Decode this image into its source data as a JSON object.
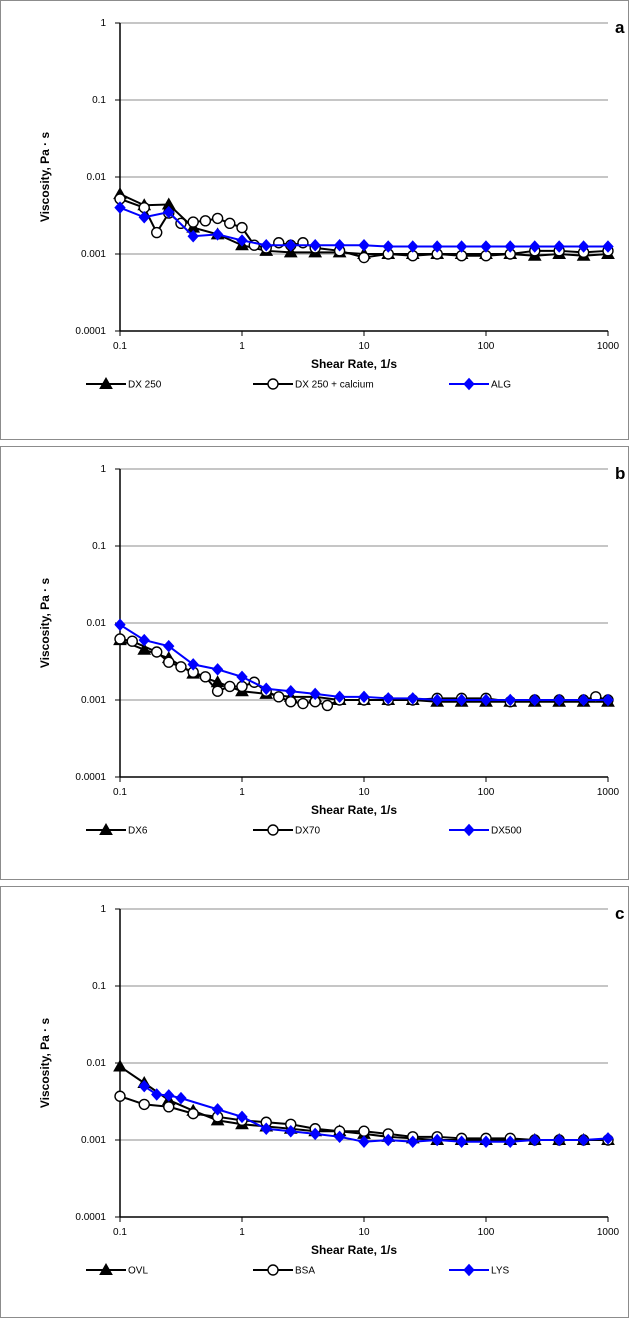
{
  "chart_data": [
    {
      "type": "line",
      "panel_label": "a",
      "xlabel": "Shear Rate, 1/s",
      "ylabel": "Viscosity, Pa · s",
      "xscale": "log",
      "yscale": "log",
      "xlim": [
        0.1,
        1000
      ],
      "ylim": [
        0.0001,
        1
      ],
      "x_tick_labels": [
        "0.1",
        "1",
        "10",
        "100",
        "1000"
      ],
      "y_tick_labels": [
        "0.0001",
        "0.001",
        "0.01",
        "0.1",
        "1"
      ],
      "grid": "horizontal",
      "legend_position": "bottom",
      "series": [
        {
          "name": "DX 250",
          "marker": "triangle",
          "color": "#000000",
          "x": [
            0.1,
            0.158,
            0.251,
            0.398,
            0.631,
            1.0,
            1.58,
            2.51,
            3.98,
            6.31,
            10,
            15.8,
            25.1,
            39.8,
            63.1,
            100,
            158,
            251,
            398,
            631,
            1000
          ],
          "y": [
            0.006,
            0.0043,
            0.0044,
            0.0022,
            0.0018,
            0.0013,
            0.0011,
            0.00105,
            0.00105,
            0.00105,
            0.001,
            0.001,
            0.001,
            0.001,
            0.001,
            0.001,
            0.001,
            0.00095,
            0.001,
            0.00095,
            0.001
          ]
        },
        {
          "name": "DX 250 + calcium",
          "marker": "circle-open",
          "color": "#000000",
          "x": [
            0.1,
            0.158,
            0.2,
            0.251,
            0.316,
            0.398,
            0.501,
            0.631,
            0.794,
            1.0,
            1.26,
            1.58,
            2.0,
            2.51,
            3.16,
            3.98,
            6.31,
            10,
            15.8,
            25.1,
            39.8,
            63.1,
            100,
            158,
            251,
            398,
            631,
            1000
          ],
          "y": [
            0.0052,
            0.004,
            0.0019,
            0.0034,
            0.0025,
            0.0026,
            0.0027,
            0.0029,
            0.0025,
            0.0022,
            0.0013,
            0.0012,
            0.0014,
            0.0013,
            0.0014,
            0.0012,
            0.0011,
            0.0009,
            0.001,
            0.00095,
            0.001,
            0.00095,
            0.00095,
            0.001,
            0.0011,
            0.0011,
            0.00105,
            0.0011
          ]
        },
        {
          "name": "ALG",
          "marker": "diamond",
          "color": "#0000ff",
          "x": [
            0.1,
            0.158,
            0.251,
            0.398,
            0.631,
            1.0,
            1.58,
            2.51,
            3.98,
            6.31,
            10,
            15.8,
            25.1,
            39.8,
            63.1,
            100,
            158,
            251,
            398,
            631,
            1000
          ],
          "y": [
            0.004,
            0.003,
            0.0035,
            0.0017,
            0.0018,
            0.0015,
            0.0013,
            0.0013,
            0.0013,
            0.0013,
            0.0013,
            0.00125,
            0.00125,
            0.00125,
            0.00125,
            0.00125,
            0.00125,
            0.00125,
            0.00125,
            0.00125,
            0.00125
          ]
        }
      ]
    },
    {
      "type": "line",
      "panel_label": "b",
      "xlabel": "Shear Rate, 1/s",
      "ylabel": "Viscosity, Pa · s",
      "xscale": "log",
      "yscale": "log",
      "xlim": [
        0.1,
        1000
      ],
      "ylim": [
        0.0001,
        1
      ],
      "x_tick_labels": [
        "0.1",
        "1",
        "10",
        "100",
        "1000"
      ],
      "y_tick_labels": [
        "0.0001",
        "0.001",
        "0.01",
        "0.1",
        "1"
      ],
      "grid": "horizontal",
      "legend_position": "bottom",
      "series": [
        {
          "name": "DX6",
          "marker": "triangle",
          "color": "#000000",
          "x": [
            0.1,
            0.158,
            0.251,
            0.398,
            0.631,
            1.0,
            1.58,
            2.51,
            3.98,
            6.31,
            10,
            15.8,
            25.1,
            39.8,
            63.1,
            100,
            158,
            251,
            398,
            631,
            1000
          ],
          "y": [
            0.006,
            0.0045,
            0.0035,
            0.0022,
            0.0017,
            0.0013,
            0.0012,
            0.0011,
            0.0011,
            0.001,
            0.001,
            0.001,
            0.001,
            0.00095,
            0.00095,
            0.00095,
            0.00095,
            0.00095,
            0.00095,
            0.00095,
            0.00095
          ]
        },
        {
          "name": "DX70",
          "marker": "circle-open",
          "color": "#000000",
          "x": [
            0.1,
            0.126,
            0.2,
            0.251,
            0.316,
            0.398,
            0.501,
            0.631,
            0.794,
            1.0,
            1.26,
            1.58,
            2.0,
            2.51,
            3.16,
            3.98,
            5.01,
            6.31,
            10,
            15.8,
            25.1,
            39.8,
            63.1,
            100,
            158,
            251,
            398,
            631,
            794,
            1000
          ],
          "y": [
            0.0062,
            0.0058,
            0.0042,
            0.0031,
            0.0027,
            0.0023,
            0.002,
            0.0013,
            0.0015,
            0.0015,
            0.0017,
            0.0013,
            0.0011,
            0.00095,
            0.0009,
            0.00095,
            0.00085,
            0.001,
            0.001,
            0.001,
            0.001,
            0.00105,
            0.00105,
            0.00105,
            0.00095,
            0.001,
            0.001,
            0.001,
            0.0011,
            0.001
          ]
        },
        {
          "name": "DX500",
          "marker": "diamond",
          "color": "#0000ff",
          "x": [
            0.1,
            0.158,
            0.251,
            0.398,
            0.631,
            1.0,
            1.58,
            2.51,
            3.98,
            6.31,
            10,
            15.8,
            25.1,
            39.8,
            63.1,
            100,
            158,
            251,
            398,
            631,
            1000
          ],
          "y": [
            0.0095,
            0.006,
            0.005,
            0.0029,
            0.0025,
            0.002,
            0.0014,
            0.0013,
            0.0012,
            0.0011,
            0.0011,
            0.00105,
            0.00105,
            0.001,
            0.001,
            0.001,
            0.001,
            0.001,
            0.001,
            0.001,
            0.001
          ]
        }
      ]
    },
    {
      "type": "line",
      "panel_label": "c",
      "xlabel": "Shear Rate, 1/s",
      "ylabel": "Viscosity, Pa · s",
      "xscale": "log",
      "yscale": "log",
      "xlim": [
        0.1,
        1000
      ],
      "ylim": [
        0.0001,
        1
      ],
      "x_tick_labels": [
        "0.1",
        "1",
        "10",
        "100",
        "1000"
      ],
      "y_tick_labels": [
        "0.0001",
        "0.001",
        "0.01",
        "0.1",
        "1"
      ],
      "grid": "horizontal",
      "legend_position": "bottom",
      "series": [
        {
          "name": "OVL",
          "marker": "triangle",
          "color": "#000000",
          "x": [
            0.1,
            0.158,
            0.251,
            0.398,
            0.631,
            1.0,
            1.58,
            2.51,
            3.98,
            6.31,
            10,
            15.8,
            25.1,
            39.8,
            63.1,
            100,
            158,
            251,
            398,
            631,
            1000
          ],
          "y": [
            0.009,
            0.0055,
            0.0033,
            0.0024,
            0.0018,
            0.0016,
            0.0015,
            0.0014,
            0.0013,
            0.0013,
            0.0012,
            0.0011,
            0.00105,
            0.001,
            0.001,
            0.001,
            0.001,
            0.001,
            0.001,
            0.001,
            0.001
          ]
        },
        {
          "name": "BSA",
          "marker": "circle-open",
          "color": "#000000",
          "x": [
            0.1,
            0.158,
            0.251,
            0.398,
            0.631,
            1.0,
            1.58,
            2.51,
            3.98,
            6.31,
            10,
            15.8,
            25.1,
            39.8,
            63.1,
            100,
            158,
            251,
            398,
            631,
            1000
          ],
          "y": [
            0.0037,
            0.0029,
            0.0027,
            0.0022,
            0.002,
            0.0018,
            0.0017,
            0.0016,
            0.0014,
            0.0013,
            0.0013,
            0.0012,
            0.0011,
            0.0011,
            0.00105,
            0.00105,
            0.00105,
            0.001,
            0.001,
            0.001,
            0.001
          ]
        },
        {
          "name": "LYS",
          "marker": "diamond",
          "color": "#0000ff",
          "x": [
            0.158,
            0.2,
            0.251,
            0.316,
            0.631,
            1.0,
            1.58,
            2.51,
            3.98,
            6.31,
            10,
            15.8,
            25.1,
            39.8,
            63.1,
            100,
            158,
            251,
            398,
            631,
            1000
          ],
          "y": [
            0.005,
            0.0039,
            0.0038,
            0.0035,
            0.0025,
            0.002,
            0.0014,
            0.0013,
            0.0012,
            0.0011,
            0.00095,
            0.001,
            0.00095,
            0.001,
            0.00095,
            0.00095,
            0.00095,
            0.001,
            0.001,
            0.001,
            0.00105
          ]
        }
      ]
    }
  ]
}
